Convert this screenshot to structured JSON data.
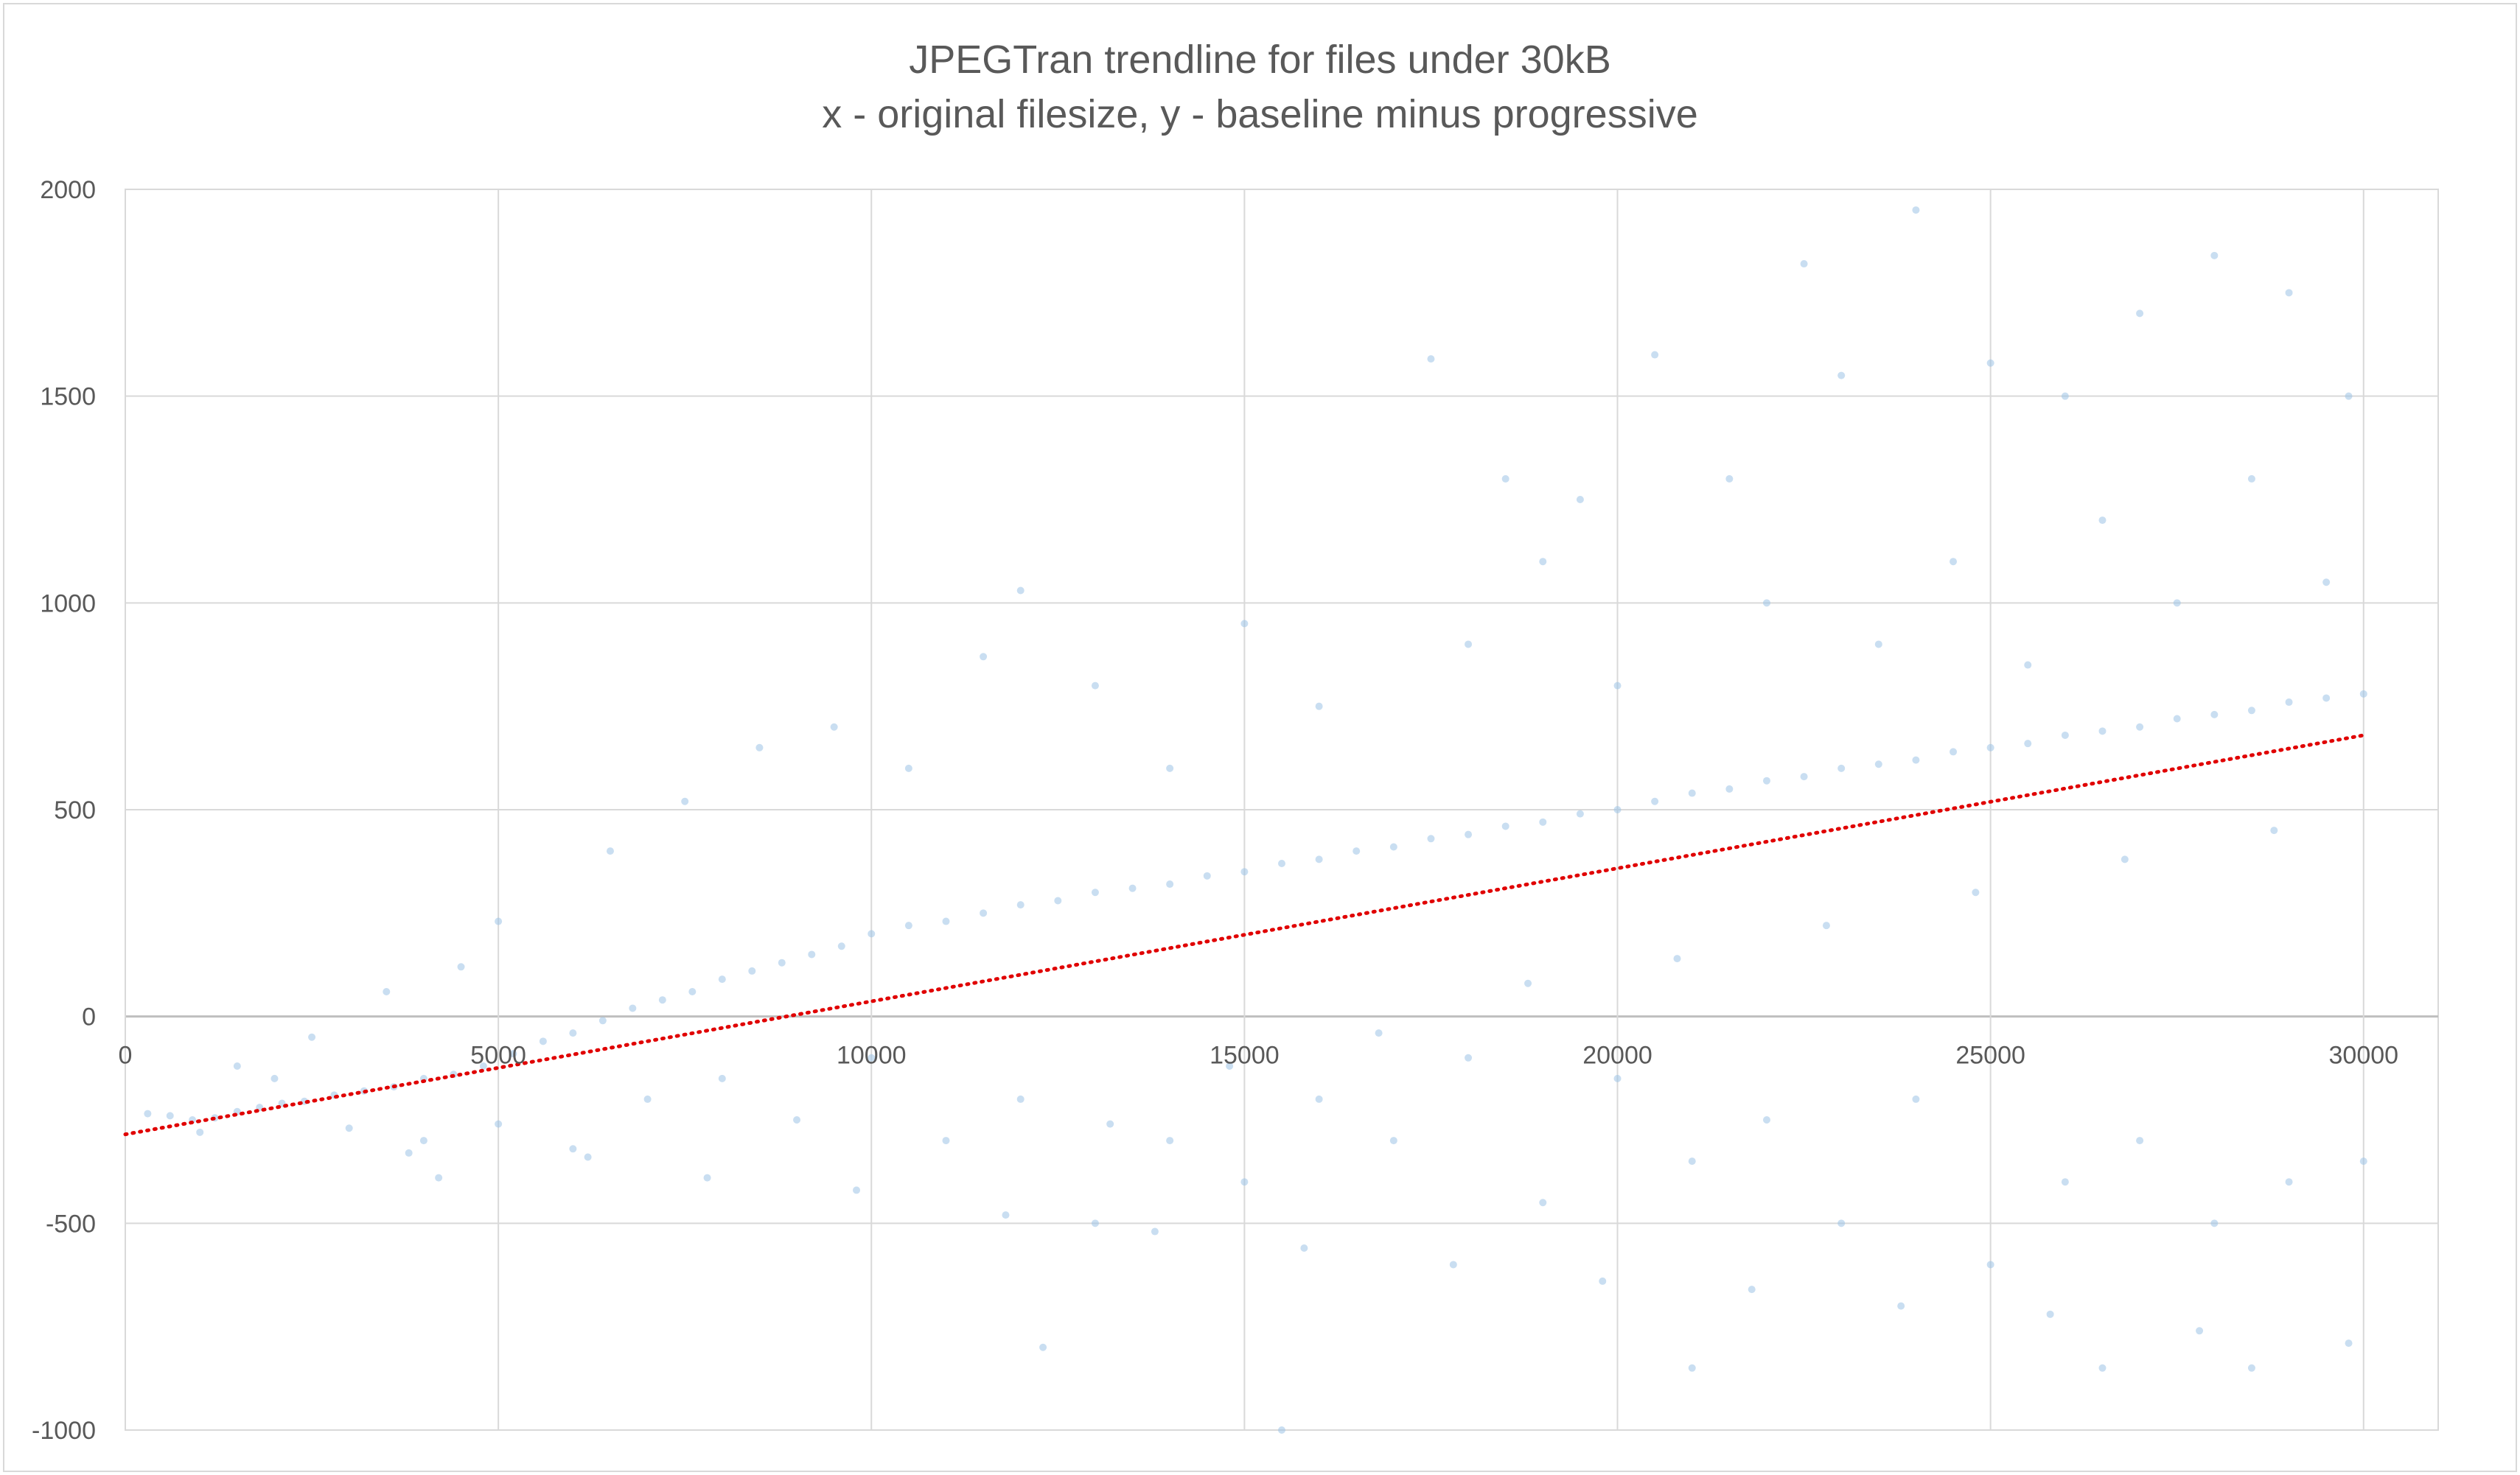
{
  "chart_data": {
    "type": "scatter",
    "title": "JPEGTran trendline for files under 30kB",
    "subtitle": "x - original filesize, y - baseline minus progressive",
    "xlabel": "",
    "ylabel": "",
    "xlim": [
      0,
      31000
    ],
    "ylim": [
      -1000,
      2000
    ],
    "x_ticks": [
      0,
      5000,
      10000,
      15000,
      20000,
      25000,
      30000
    ],
    "y_ticks": [
      -1000,
      -500,
      0,
      500,
      1000,
      1500,
      2000
    ],
    "grid": true,
    "legend": "none",
    "colors": {
      "points": "#9dc3e6",
      "trendline": "#e00000",
      "grid": "#d9d9d9",
      "axis_zero": "#bfbfbf",
      "text": "#595959"
    },
    "trendline": {
      "style": "dotted",
      "x": [
        0,
        30000
      ],
      "y": [
        -285,
        680
      ]
    },
    "series": [
      {
        "points": [
          [
            300,
            -235
          ],
          [
            600,
            -240
          ],
          [
            900,
            -250
          ],
          [
            1200,
            -245
          ],
          [
            1500,
            -230
          ],
          [
            1800,
            -220
          ],
          [
            2100,
            -210
          ],
          [
            2400,
            -205
          ],
          [
            2800,
            -190
          ],
          [
            3200,
            -180
          ],
          [
            3600,
            -170
          ],
          [
            4000,
            -150
          ],
          [
            4400,
            -140
          ],
          [
            4800,
            -120
          ],
          [
            5200,
            -90
          ],
          [
            5600,
            -60
          ],
          [
            6000,
            -40
          ],
          [
            6400,
            -10
          ],
          [
            6800,
            20
          ],
          [
            7200,
            40
          ],
          [
            7600,
            60
          ],
          [
            8000,
            90
          ],
          [
            8400,
            110
          ],
          [
            8800,
            130
          ],
          [
            9200,
            150
          ],
          [
            9600,
            170
          ],
          [
            10000,
            200
          ],
          [
            10500,
            220
          ],
          [
            11000,
            230
          ],
          [
            11500,
            250
          ],
          [
            12000,
            270
          ],
          [
            12500,
            280
          ],
          [
            13000,
            300
          ],
          [
            13500,
            310
          ],
          [
            14000,
            320
          ],
          [
            14500,
            340
          ],
          [
            15000,
            350
          ],
          [
            15500,
            370
          ],
          [
            16000,
            380
          ],
          [
            16500,
            400
          ],
          [
            17000,
            410
          ],
          [
            17500,
            430
          ],
          [
            18000,
            440
          ],
          [
            18500,
            460
          ],
          [
            19000,
            470
          ],
          [
            19500,
            490
          ],
          [
            20000,
            500
          ],
          [
            20500,
            520
          ],
          [
            21000,
            540
          ],
          [
            21500,
            550
          ],
          [
            22000,
            570
          ],
          [
            22500,
            580
          ],
          [
            23000,
            600
          ],
          [
            23500,
            610
          ],
          [
            24000,
            620
          ],
          [
            24500,
            640
          ],
          [
            25000,
            650
          ],
          [
            25500,
            660
          ],
          [
            26000,
            680
          ],
          [
            26500,
            690
          ],
          [
            27000,
            700
          ],
          [
            27500,
            720
          ],
          [
            28000,
            730
          ],
          [
            28500,
            740
          ],
          [
            29000,
            760
          ],
          [
            29500,
            770
          ],
          [
            30000,
            780
          ],
          [
            1000,
            -280
          ],
          [
            2000,
            -150
          ],
          [
            3000,
            -270
          ],
          [
            4000,
            -300
          ],
          [
            5000,
            -260
          ],
          [
            6000,
            -320
          ],
          [
            7000,
            -200
          ],
          [
            8000,
            -150
          ],
          [
            9000,
            -250
          ],
          [
            10000,
            -100
          ],
          [
            11000,
            -300
          ],
          [
            12000,
            -200
          ],
          [
            13000,
            -500
          ],
          [
            14000,
            -300
          ],
          [
            15000,
            -400
          ],
          [
            16000,
            -200
          ],
          [
            17000,
            -300
          ],
          [
            18000,
            -100
          ],
          [
            19000,
            -450
          ],
          [
            20000,
            -150
          ],
          [
            21000,
            -350
          ],
          [
            22000,
            -250
          ],
          [
            23000,
            -500
          ],
          [
            24000,
            -200
          ],
          [
            25000,
            -600
          ],
          [
            26000,
            -400
          ],
          [
            27000,
            -300
          ],
          [
            28000,
            -500
          ],
          [
            29000,
            -400
          ],
          [
            30000,
            -350
          ],
          [
            12000,
            1030
          ],
          [
            15000,
            950
          ],
          [
            17500,
            1590
          ],
          [
            18500,
            1300
          ],
          [
            19500,
            1250
          ],
          [
            20500,
            1600
          ],
          [
            21500,
            1300
          ],
          [
            22500,
            1820
          ],
          [
            23000,
            1550
          ],
          [
            24000,
            1950
          ],
          [
            25000,
            1580
          ],
          [
            26000,
            1500
          ],
          [
            27000,
            1700
          ],
          [
            28000,
            1840
          ],
          [
            29000,
            1750
          ],
          [
            29800,
            1500
          ],
          [
            21000,
            -850
          ],
          [
            26500,
            -850
          ],
          [
            28500,
            -850
          ],
          [
            15500,
            -1000
          ],
          [
            11500,
            870
          ],
          [
            13000,
            800
          ],
          [
            14000,
            600
          ],
          [
            16000,
            750
          ],
          [
            18000,
            900
          ],
          [
            19000,
            1100
          ],
          [
            20000,
            800
          ],
          [
            22000,
            1000
          ],
          [
            23500,
            900
          ],
          [
            24500,
            1100
          ],
          [
            25500,
            850
          ],
          [
            26500,
            1200
          ],
          [
            27500,
            1000
          ],
          [
            28500,
            1300
          ],
          [
            29500,
            1050
          ],
          [
            8500,
            650
          ],
          [
            9500,
            700
          ],
          [
            10500,
            600
          ],
          [
            7500,
            520
          ],
          [
            6500,
            400
          ],
          [
            5000,
            230
          ],
          [
            4500,
            120
          ],
          [
            3500,
            60
          ],
          [
            2500,
            -50
          ],
          [
            1500,
            -120
          ],
          [
            4200,
            -390
          ],
          [
            3800,
            -330
          ],
          [
            6200,
            -340
          ],
          [
            7800,
            -390
          ],
          [
            9800,
            -420
          ],
          [
            11800,
            -480
          ],
          [
            13800,
            -520
          ],
          [
            15800,
            -560
          ],
          [
            17800,
            -600
          ],
          [
            19800,
            -640
          ],
          [
            21800,
            -660
          ],
          [
            23800,
            -700
          ],
          [
            25800,
            -720
          ],
          [
            27800,
            -760
          ],
          [
            29800,
            -790
          ],
          [
            12300,
            -800
          ],
          [
            13200,
            -260
          ],
          [
            14800,
            -120
          ],
          [
            16800,
            -40
          ],
          [
            18800,
            80
          ],
          [
            20800,
            140
          ],
          [
            22800,
            220
          ],
          [
            24800,
            300
          ],
          [
            26800,
            380
          ],
          [
            28800,
            450
          ]
        ]
      }
    ]
  }
}
